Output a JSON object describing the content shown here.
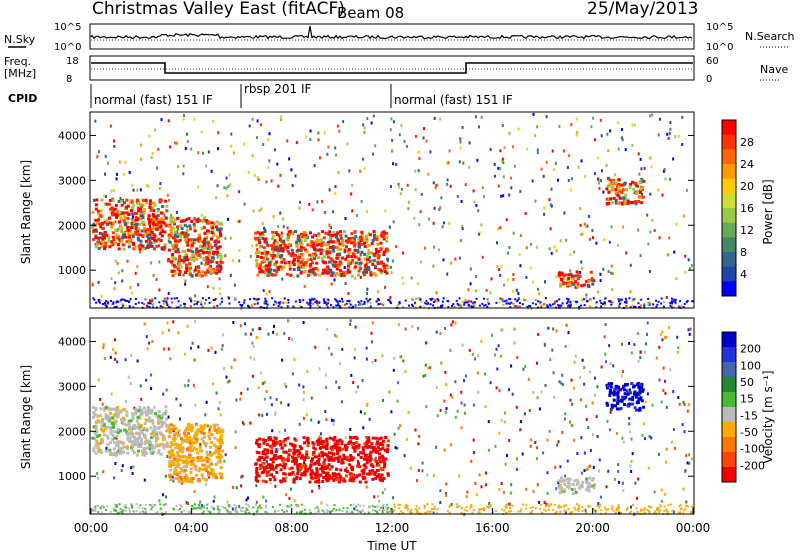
{
  "header": {
    "title": "Christmas Valley East (fitACF)",
    "beam": "Beam 08",
    "date": "25/May/2013"
  },
  "noise_panel": {
    "left_label": "N.Sky",
    "right_label": "N.Search",
    "left_ticks": [
      "10^5",
      "10^0"
    ],
    "right_ticks": [
      "10^5",
      "10^0"
    ]
  },
  "freq_panel": {
    "left_label_1": "Freq.",
    "left_label_2": "[MHz]",
    "right_label": "Nave",
    "left_ticks": [
      "18",
      "8"
    ],
    "right_ticks": [
      "60",
      "0"
    ]
  },
  "cpid": {
    "label": "CPID",
    "segments": [
      {
        "text": "normal (fast) 151 IF",
        "start_hour": 0
      },
      {
        "text": "rbsp 201 IF",
        "start_hour": 6
      },
      {
        "text": "normal (fast) 151 IF",
        "start_hour": 12
      }
    ]
  },
  "chart_data": [
    {
      "type": "heatmap",
      "title": "Power",
      "ylabel": "Slant Range [km]",
      "ylim": [
        180,
        4500
      ],
      "yticks": [
        "1000",
        "2000",
        "3000",
        "4000"
      ],
      "colorbar": {
        "label": "Power [dB]",
        "ticks": [
          "28",
          "24",
          "20",
          "16",
          "12",
          "8",
          "4"
        ],
        "colors": [
          "#ff0000",
          "#ff3300",
          "#ff6600",
          "#ff9900",
          "#ffcc00",
          "#ccdd33",
          "#99cc44",
          "#66aa55",
          "#448866",
          "#336688",
          "#2244aa",
          "#0000ff"
        ]
      },
      "x_hours": [
        0,
        24
      ],
      "dominant_blobs": [
        {
          "t0": 0.0,
          "t1": 3.0,
          "r0": 1500,
          "r1": 2600,
          "level": "high"
        },
        {
          "t0": 3.0,
          "t1": 5.2,
          "r0": 900,
          "r1": 2200,
          "level": "high"
        },
        {
          "t0": 6.5,
          "t1": 11.8,
          "r0": 900,
          "r1": 1900,
          "level": "high"
        },
        {
          "t0": 18.6,
          "t1": 20.0,
          "r0": 650,
          "r1": 1000,
          "level": "high"
        },
        {
          "t0": 20.5,
          "t1": 22.0,
          "r0": 2500,
          "r1": 3100,
          "level": "high"
        }
      ]
    },
    {
      "type": "heatmap",
      "title": "Velocity",
      "ylabel": "Slant Range [km]",
      "ylim": [
        180,
        4500
      ],
      "yticks": [
        "1000",
        "2000",
        "3000",
        "4000"
      ],
      "colorbar": {
        "label": "Velocity [m s⁻¹]",
        "ticks": [
          "200",
          "100",
          "50",
          "15",
          "-15",
          "-50",
          "-100",
          "-200"
        ],
        "colors": [
          "#0000cc",
          "#2233dd",
          "#4466aa",
          "#228833",
          "#44bb33",
          "#bbbbbb",
          "#ffaa00",
          "#ff7700",
          "#ff4400",
          "#ee0000"
        ]
      },
      "x_hours": [
        0,
        24
      ],
      "dominant_blobs": [
        {
          "t0": 0.0,
          "t1": 3.0,
          "r0": 1500,
          "r1": 2600,
          "level": "gray"
        },
        {
          "t0": 3.0,
          "t1": 5.2,
          "r0": 900,
          "r1": 2200,
          "level": "orange"
        },
        {
          "t0": 6.5,
          "t1": 11.8,
          "r0": 900,
          "r1": 1900,
          "level": "red"
        },
        {
          "t0": 18.6,
          "t1": 20.0,
          "r0": 650,
          "r1": 1000,
          "level": "gray"
        },
        {
          "t0": 20.5,
          "t1": 22.0,
          "r0": 2500,
          "r1": 3100,
          "level": "blue"
        }
      ]
    }
  ],
  "x_axis": {
    "label": "Time UT",
    "ticks": [
      "00:00",
      "04:00",
      "08:00",
      "12:00",
      "16:00",
      "20:00",
      "00:00"
    ]
  }
}
